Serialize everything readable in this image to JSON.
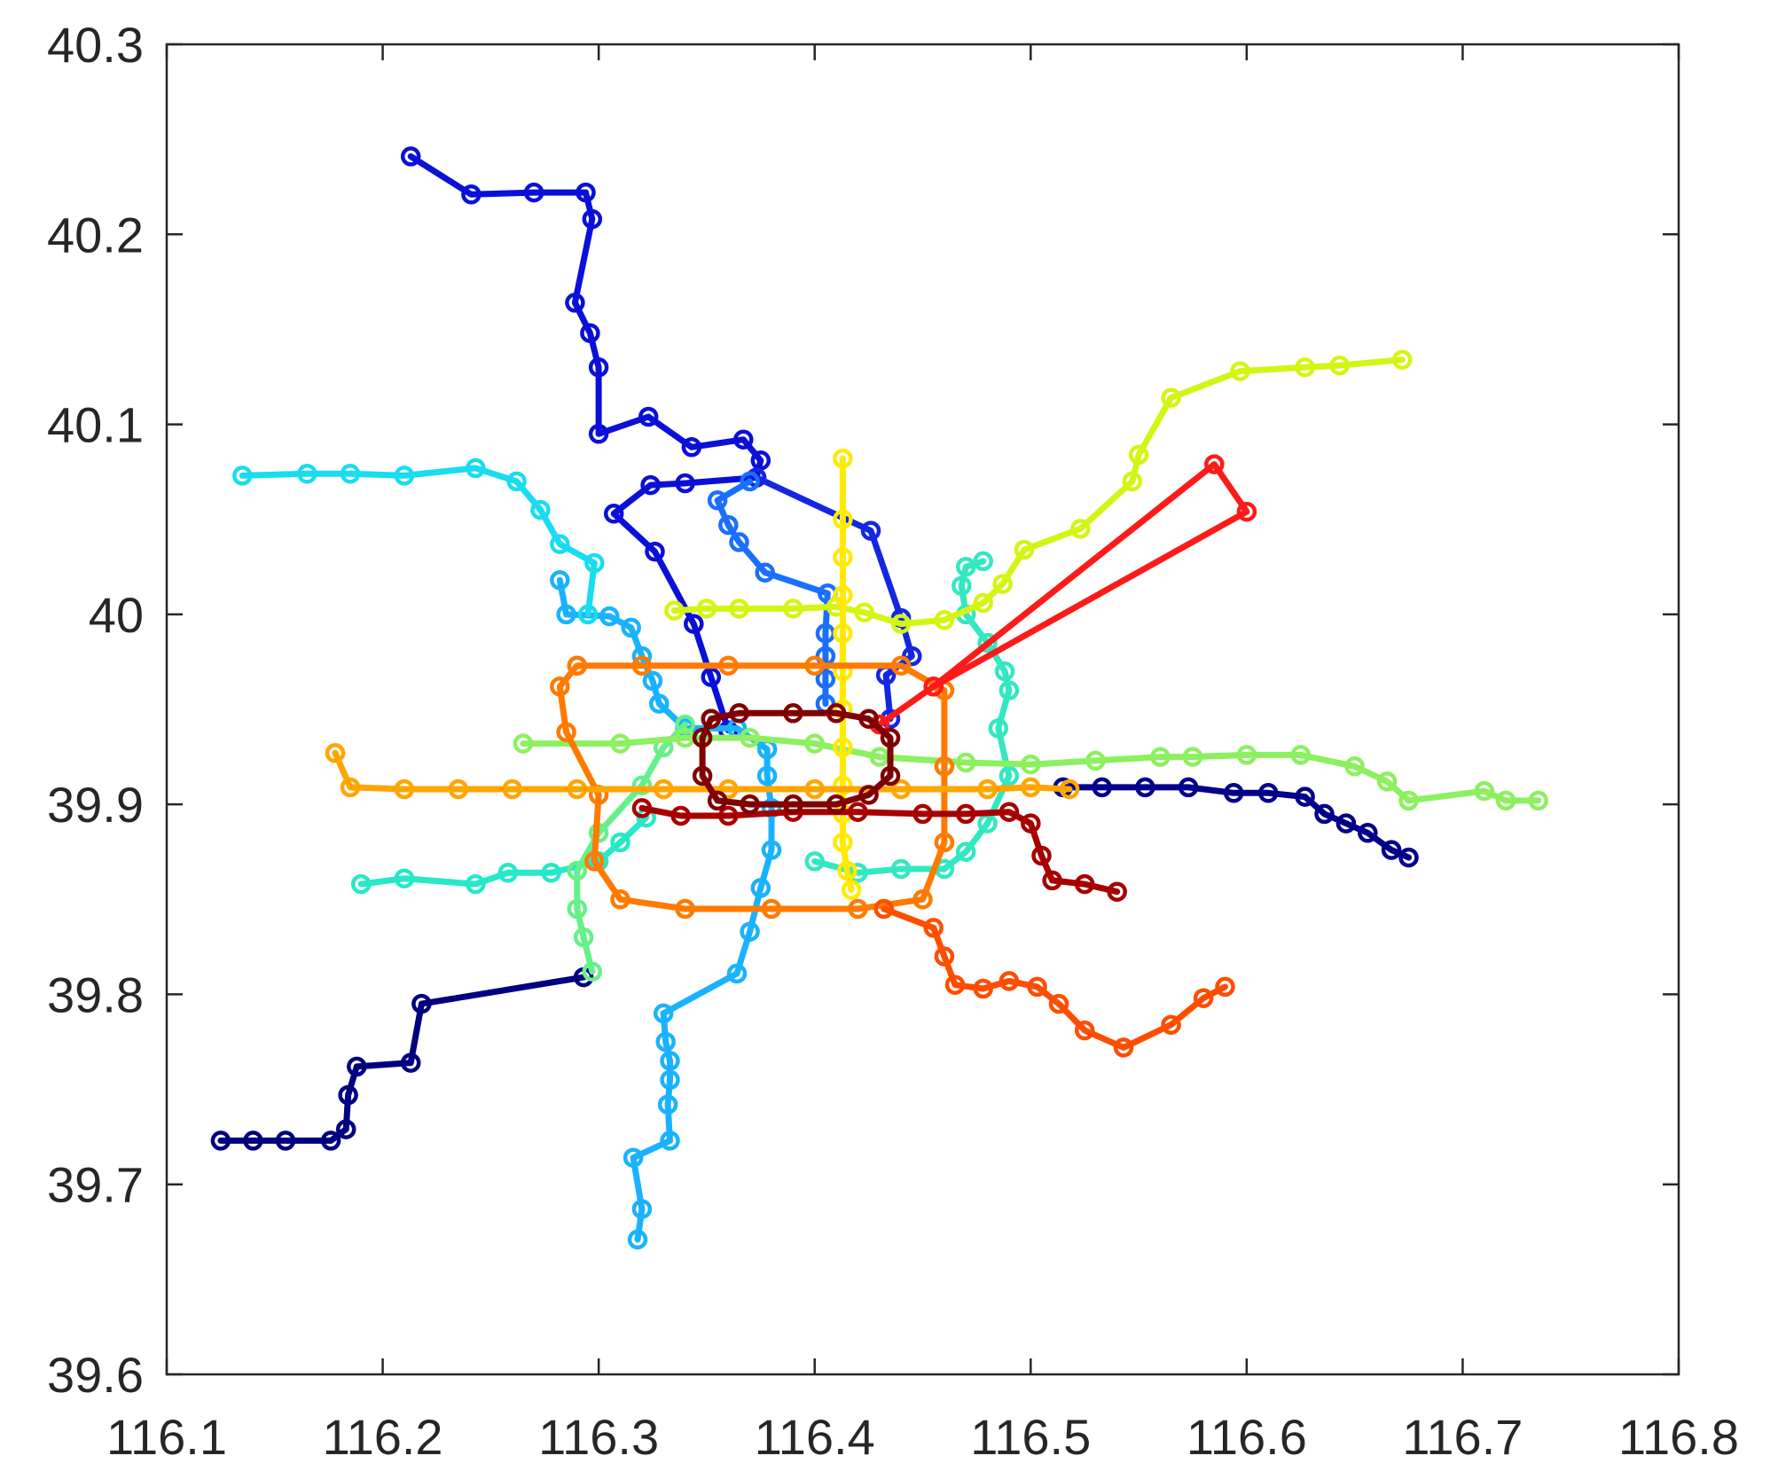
{
  "chart_data": {
    "type": "line",
    "title": "",
    "xlabel": "",
    "ylabel": "",
    "xlim": [
      116.1,
      116.8
    ],
    "ylim": [
      39.6,
      40.3
    ],
    "xticks": [
      "116.1",
      "116.2",
      "116.3",
      "116.4",
      "116.5",
      "116.6",
      "116.7",
      "116.8"
    ],
    "yticks": [
      "39.6",
      "39.7",
      "39.8",
      "39.9",
      "40",
      "40.1",
      "40.2",
      "40.3"
    ],
    "grid": false,
    "legend": "none",
    "marker": "circle-open",
    "series": [
      {
        "color": "#000080",
        "points": [
          [
            116.125,
            39.723
          ],
          [
            116.14,
            39.723
          ],
          [
            116.155,
            39.723
          ],
          [
            116.176,
            39.723
          ],
          [
            116.183,
            39.729
          ],
          [
            116.184,
            39.747
          ],
          [
            116.188,
            39.762
          ],
          [
            116.213,
            39.764
          ],
          [
            116.218,
            39.795
          ],
          [
            116.293,
            39.809
          ]
        ]
      },
      {
        "color": "#00008b",
        "points": [
          [
            116.515,
            39.909
          ],
          [
            116.533,
            39.909
          ],
          [
            116.553,
            39.909
          ],
          [
            116.573,
            39.909
          ],
          [
            116.594,
            39.906
          ],
          [
            116.61,
            39.906
          ],
          [
            116.627,
            39.904
          ],
          [
            116.636,
            39.895
          ],
          [
            116.646,
            39.89
          ],
          [
            116.656,
            39.885
          ],
          [
            116.667,
            39.876
          ],
          [
            116.675,
            39.872
          ]
        ]
      },
      {
        "color": "#0a10d8",
        "points": [
          [
            116.213,
            40.241
          ],
          [
            116.241,
            40.221
          ],
          [
            116.27,
            40.222
          ],
          [
            116.294,
            40.222
          ],
          [
            116.297,
            40.208
          ],
          [
            116.289,
            40.164
          ],
          [
            116.296,
            40.148
          ],
          [
            116.3,
            40.13
          ],
          [
            116.3,
            40.095
          ],
          [
            116.323,
            40.104
          ],
          [
            116.343,
            40.088
          ],
          [
            116.367,
            40.092
          ],
          [
            116.375,
            40.081
          ],
          [
            116.373,
            40.072
          ],
          [
            116.34,
            40.069
          ],
          [
            116.324,
            40.068
          ],
          [
            116.307,
            40.053
          ],
          [
            116.326,
            40.033
          ],
          [
            116.344,
            39.995
          ],
          [
            116.352,
            39.967
          ],
          [
            116.36,
            39.939
          ]
        ]
      },
      {
        "color": "#1427e0",
        "points": [
          [
            116.373,
            40.072
          ],
          [
            116.426,
            40.044
          ],
          [
            116.44,
            39.998
          ],
          [
            116.445,
            39.978
          ],
          [
            116.433,
            39.968
          ],
          [
            116.435,
            39.945
          ]
        ]
      },
      {
        "color": "#1a6fff",
        "points": [
          [
            116.37,
            40.07
          ],
          [
            116.355,
            40.06
          ],
          [
            116.36,
            40.047
          ],
          [
            116.365,
            40.038
          ],
          [
            116.377,
            40.022
          ],
          [
            116.406,
            40.011
          ],
          [
            116.405,
            39.99
          ],
          [
            116.405,
            39.978
          ],
          [
            116.405,
            39.966
          ],
          [
            116.405,
            39.953
          ]
        ]
      },
      {
        "color": "#1ab2ff",
        "points": [
          [
            116.318,
            39.671
          ],
          [
            116.32,
            39.687
          ],
          [
            116.316,
            39.714
          ],
          [
            116.333,
            39.723
          ],
          [
            116.332,
            39.742
          ],
          [
            116.333,
            39.755
          ],
          [
            116.333,
            39.765
          ],
          [
            116.331,
            39.775
          ],
          [
            116.33,
            39.79
          ],
          [
            116.364,
            39.811
          ],
          [
            116.37,
            39.833
          ],
          [
            116.375,
            39.856
          ],
          [
            116.38,
            39.876
          ],
          [
            116.38,
            39.898
          ],
          [
            116.378,
            39.915
          ],
          [
            116.378,
            39.929
          ],
          [
            116.364,
            39.94
          ],
          [
            116.34,
            39.94
          ],
          [
            116.328,
            39.953
          ],
          [
            116.325,
            39.965
          ],
          [
            116.32,
            39.978
          ],
          [
            116.315,
            39.993
          ],
          [
            116.305,
            39.999
          ],
          [
            116.285,
            40.0
          ],
          [
            116.282,
            40.018
          ]
        ]
      },
      {
        "color": "#1adcf0",
        "points": [
          [
            116.135,
            40.073
          ],
          [
            116.165,
            40.074
          ],
          [
            116.185,
            40.074
          ],
          [
            116.21,
            40.073
          ],
          [
            116.243,
            40.077
          ],
          [
            116.262,
            40.07
          ],
          [
            116.273,
            40.055
          ],
          [
            116.282,
            40.037
          ],
          [
            116.298,
            40.027
          ],
          [
            116.295,
            40.0
          ]
        ]
      },
      {
        "color": "#27e8c8",
        "points": [
          [
            116.19,
            39.858
          ],
          [
            116.21,
            39.861
          ],
          [
            116.243,
            39.858
          ],
          [
            116.258,
            39.864
          ],
          [
            116.278,
            39.864
          ],
          [
            116.3,
            39.87
          ],
          [
            116.31,
            39.88
          ],
          [
            116.322,
            39.893
          ]
        ]
      },
      {
        "color": "#33e8c0",
        "points": [
          [
            116.4,
            39.87
          ],
          [
            116.42,
            39.864
          ],
          [
            116.44,
            39.866
          ],
          [
            116.46,
            39.866
          ],
          [
            116.47,
            39.875
          ],
          [
            116.48,
            39.89
          ],
          [
            116.49,
            39.915
          ],
          [
            116.485,
            39.94
          ],
          [
            116.49,
            39.96
          ],
          [
            116.488,
            39.97
          ],
          [
            116.48,
            39.985
          ],
          [
            116.47,
            40.0
          ],
          [
            116.468,
            40.015
          ],
          [
            116.47,
            40.025
          ],
          [
            116.478,
            40.028
          ]
        ]
      },
      {
        "color": "#66f08a",
        "points": [
          [
            116.297,
            39.812
          ],
          [
            116.293,
            39.83
          ],
          [
            116.29,
            39.845
          ],
          [
            116.29,
            39.865
          ],
          [
            116.3,
            39.885
          ],
          [
            116.32,
            39.91
          ],
          [
            116.33,
            39.93
          ],
          [
            116.34,
            39.942
          ]
        ]
      },
      {
        "color": "#8cf060",
        "points": [
          [
            116.265,
            39.932
          ],
          [
            116.31,
            39.932
          ],
          [
            116.34,
            39.935
          ],
          [
            116.37,
            39.935
          ],
          [
            116.4,
            39.932
          ],
          [
            116.43,
            39.925
          ],
          [
            116.47,
            39.922
          ],
          [
            116.5,
            39.921
          ],
          [
            116.53,
            39.923
          ],
          [
            116.56,
            39.925
          ],
          [
            116.575,
            39.925
          ],
          [
            116.6,
            39.926
          ],
          [
            116.625,
            39.926
          ],
          [
            116.65,
            39.92
          ],
          [
            116.665,
            39.912
          ],
          [
            116.675,
            39.902
          ],
          [
            116.71,
            39.907
          ],
          [
            116.72,
            39.902
          ],
          [
            116.735,
            39.902
          ]
        ]
      },
      {
        "color": "#d4f514",
        "points": [
          [
            116.335,
            40.002
          ],
          [
            116.35,
            40.003
          ],
          [
            116.365,
            40.003
          ],
          [
            116.39,
            40.003
          ],
          [
            116.41,
            40.004
          ],
          [
            116.423,
            40.001
          ],
          [
            116.44,
            39.995
          ],
          [
            116.46,
            39.997
          ],
          [
            116.478,
            40.006
          ],
          [
            116.487,
            40.016
          ],
          [
            116.497,
            40.034
          ],
          [
            116.523,
            40.045
          ],
          [
            116.547,
            40.07
          ],
          [
            116.55,
            40.084
          ],
          [
            116.565,
            40.114
          ],
          [
            116.597,
            40.128
          ],
          [
            116.627,
            40.13
          ],
          [
            116.643,
            40.131
          ],
          [
            116.672,
            40.134
          ]
        ]
      },
      {
        "color": "#ffea00",
        "points": [
          [
            116.413,
            40.082
          ],
          [
            116.413,
            40.05
          ],
          [
            116.413,
            40.03
          ],
          [
            116.413,
            40.01
          ],
          [
            116.413,
            39.99
          ],
          [
            116.413,
            39.97
          ],
          [
            116.413,
            39.95
          ],
          [
            116.413,
            39.93
          ],
          [
            116.413,
            39.91
          ],
          [
            116.413,
            39.895
          ],
          [
            116.413,
            39.88
          ],
          [
            116.415,
            39.865
          ],
          [
            116.417,
            39.855
          ]
        ]
      },
      {
        "color": "#ff7a00",
        "points": [
          [
            116.29,
            39.973
          ],
          [
            116.32,
            39.973
          ],
          [
            116.36,
            39.973
          ],
          [
            116.4,
            39.973
          ],
          [
            116.44,
            39.973
          ],
          [
            116.46,
            39.96
          ],
          [
            116.46,
            39.92
          ],
          [
            116.46,
            39.88
          ],
          [
            116.45,
            39.85
          ],
          [
            116.42,
            39.845
          ],
          [
            116.38,
            39.845
          ],
          [
            116.34,
            39.845
          ],
          [
            116.31,
            39.85
          ],
          [
            116.298,
            39.87
          ],
          [
            116.3,
            39.905
          ],
          [
            116.285,
            39.938
          ],
          [
            116.282,
            39.962
          ],
          [
            116.29,
            39.973
          ]
        ]
      },
      {
        "color": "#ffa500",
        "points": [
          [
            116.178,
            39.927
          ],
          [
            116.185,
            39.909
          ],
          [
            116.21,
            39.908
          ],
          [
            116.235,
            39.908
          ],
          [
            116.26,
            39.908
          ],
          [
            116.29,
            39.908
          ],
          [
            116.33,
            39.908
          ],
          [
            116.36,
            39.908
          ],
          [
            116.4,
            39.908
          ],
          [
            116.44,
            39.908
          ],
          [
            116.48,
            39.908
          ],
          [
            116.5,
            39.909
          ],
          [
            116.518,
            39.908
          ]
        ]
      },
      {
        "color": "#ff4d00",
        "points": [
          [
            116.432,
            39.845
          ],
          [
            116.455,
            39.835
          ],
          [
            116.46,
            39.82
          ],
          [
            116.465,
            39.805
          ],
          [
            116.478,
            39.803
          ],
          [
            116.49,
            39.807
          ],
          [
            116.503,
            39.804
          ],
          [
            116.513,
            39.795
          ],
          [
            116.525,
            39.781
          ],
          [
            116.543,
            39.772
          ],
          [
            116.565,
            39.784
          ],
          [
            116.58,
            39.798
          ],
          [
            116.59,
            39.804
          ]
        ]
      },
      {
        "color": "#ff1a1a",
        "points": [
          [
            116.43,
            39.942
          ],
          [
            116.455,
            39.962
          ],
          [
            116.585,
            40.079
          ],
          [
            116.6,
            40.054
          ],
          [
            116.455,
            39.962
          ]
        ]
      },
      {
        "color": "#a80000",
        "points": [
          [
            116.32,
            39.898
          ],
          [
            116.338,
            39.894
          ],
          [
            116.36,
            39.894
          ],
          [
            116.39,
            39.896
          ],
          [
            116.42,
            39.896
          ],
          [
            116.45,
            39.895
          ],
          [
            116.47,
            39.895
          ],
          [
            116.49,
            39.896
          ],
          [
            116.5,
            39.89
          ],
          [
            116.505,
            39.873
          ],
          [
            116.51,
            39.86
          ],
          [
            116.525,
            39.858
          ],
          [
            116.54,
            39.854
          ]
        ]
      },
      {
        "color": "#800000",
        "points": [
          [
            116.352,
            39.945
          ],
          [
            116.365,
            39.948
          ],
          [
            116.39,
            39.948
          ],
          [
            116.41,
            39.948
          ],
          [
            116.425,
            39.945
          ],
          [
            116.435,
            39.935
          ],
          [
            116.435,
            39.915
          ],
          [
            116.425,
            39.905
          ],
          [
            116.41,
            39.9
          ],
          [
            116.39,
            39.9
          ],
          [
            116.37,
            39.9
          ],
          [
            116.355,
            39.902
          ],
          [
            116.348,
            39.915
          ],
          [
            116.348,
            39.935
          ],
          [
            116.352,
            39.945
          ]
        ]
      }
    ]
  }
}
